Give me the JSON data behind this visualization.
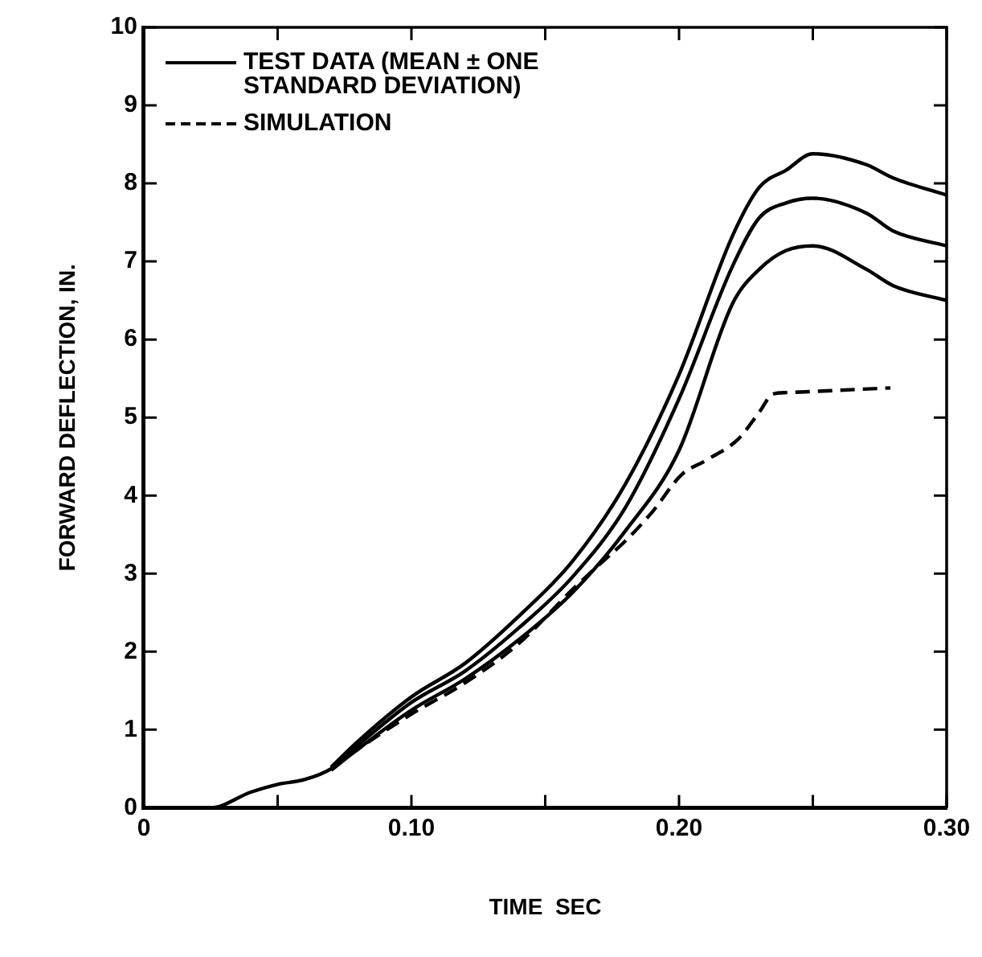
{
  "chart_data": {
    "type": "line",
    "xlabel": "TIME  SEC",
    "ylabel": "FORWARD DEFLECTION, IN.",
    "xlim": [
      0,
      0.3
    ],
    "xticks": [
      0,
      {
        "value": 0.05,
        "label": null
      },
      {
        "value": 0.1,
        "label": "0.10"
      },
      {
        "value": 0.15,
        "label": null
      },
      {
        "value": 0.2,
        "label": "0.20"
      },
      {
        "value": 0.25,
        "label": null
      },
      {
        "value": 0.3,
        "label": "0.30"
      }
    ],
    "ylim": [
      0,
      10
    ],
    "yticks": [
      0,
      1,
      2,
      3,
      4,
      5,
      6,
      7,
      8,
      9,
      10
    ],
    "legend": "top left",
    "marker": "none",
    "series": [
      {
        "name": "TEST DATA (MEAN ± ONE STANDARD DEVIATION)",
        "color": "#000000",
        "line_style": "solid",
        "x": [
          0,
          0.025,
          0.04,
          0.05,
          0.06,
          0.07,
          0.08,
          0.1,
          0.12,
          0.14,
          0.16,
          0.18,
          0.2,
          0.22,
          0.23,
          0.24,
          0.25,
          0.27,
          0.28,
          0.3
        ],
        "values": [
          0,
          0,
          0.2,
          0.3,
          0.36,
          0.5,
          0.8,
          1.35,
          1.75,
          2.3,
          2.95,
          3.85,
          5.24,
          6.94,
          7.56,
          7.75,
          7.81,
          7.62,
          7.39,
          7.2
        ]
      },
      {
        "color": "#000000",
        "line_style": "solid",
        "x": [
          0.07,
          0.08,
          0.1,
          0.12,
          0.14,
          0.16,
          0.18,
          0.2,
          0.22,
          0.23,
          0.24,
          0.25,
          0.27,
          0.28,
          0.3
        ],
        "values": [
          0.52,
          0.85,
          1.42,
          1.85,
          2.45,
          3.15,
          4.15,
          5.55,
          7.33,
          7.95,
          8.17,
          8.38,
          8.24,
          8.07,
          7.85
        ]
      },
      {
        "color": "#000000",
        "line_style": "solid",
        "x": [
          0.07,
          0.08,
          0.1,
          0.12,
          0.14,
          0.16,
          0.18,
          0.2,
          0.22,
          0.23,
          0.24,
          0.25,
          0.27,
          0.28,
          0.3
        ],
        "values": [
          0.48,
          0.75,
          1.25,
          1.65,
          2.15,
          2.75,
          3.55,
          4.58,
          6.46,
          6.9,
          7.14,
          7.2,
          6.9,
          6.69,
          6.5
        ]
      },
      {
        "name": "SIMULATION",
        "color": "#000000",
        "line_style": "dashed",
        "x": [
          0.07,
          0.08,
          0.1,
          0.12,
          0.14,
          0.16,
          0.17,
          0.18,
          0.19,
          0.201,
          0.21,
          0.222,
          0.23,
          0.235,
          0.24,
          0.279
        ],
        "values": [
          0.5,
          0.75,
          1.2,
          1.6,
          2.1,
          2.79,
          3.11,
          3.42,
          3.79,
          4.27,
          4.45,
          4.72,
          5.07,
          5.3,
          5.32,
          5.38
        ]
      }
    ]
  }
}
